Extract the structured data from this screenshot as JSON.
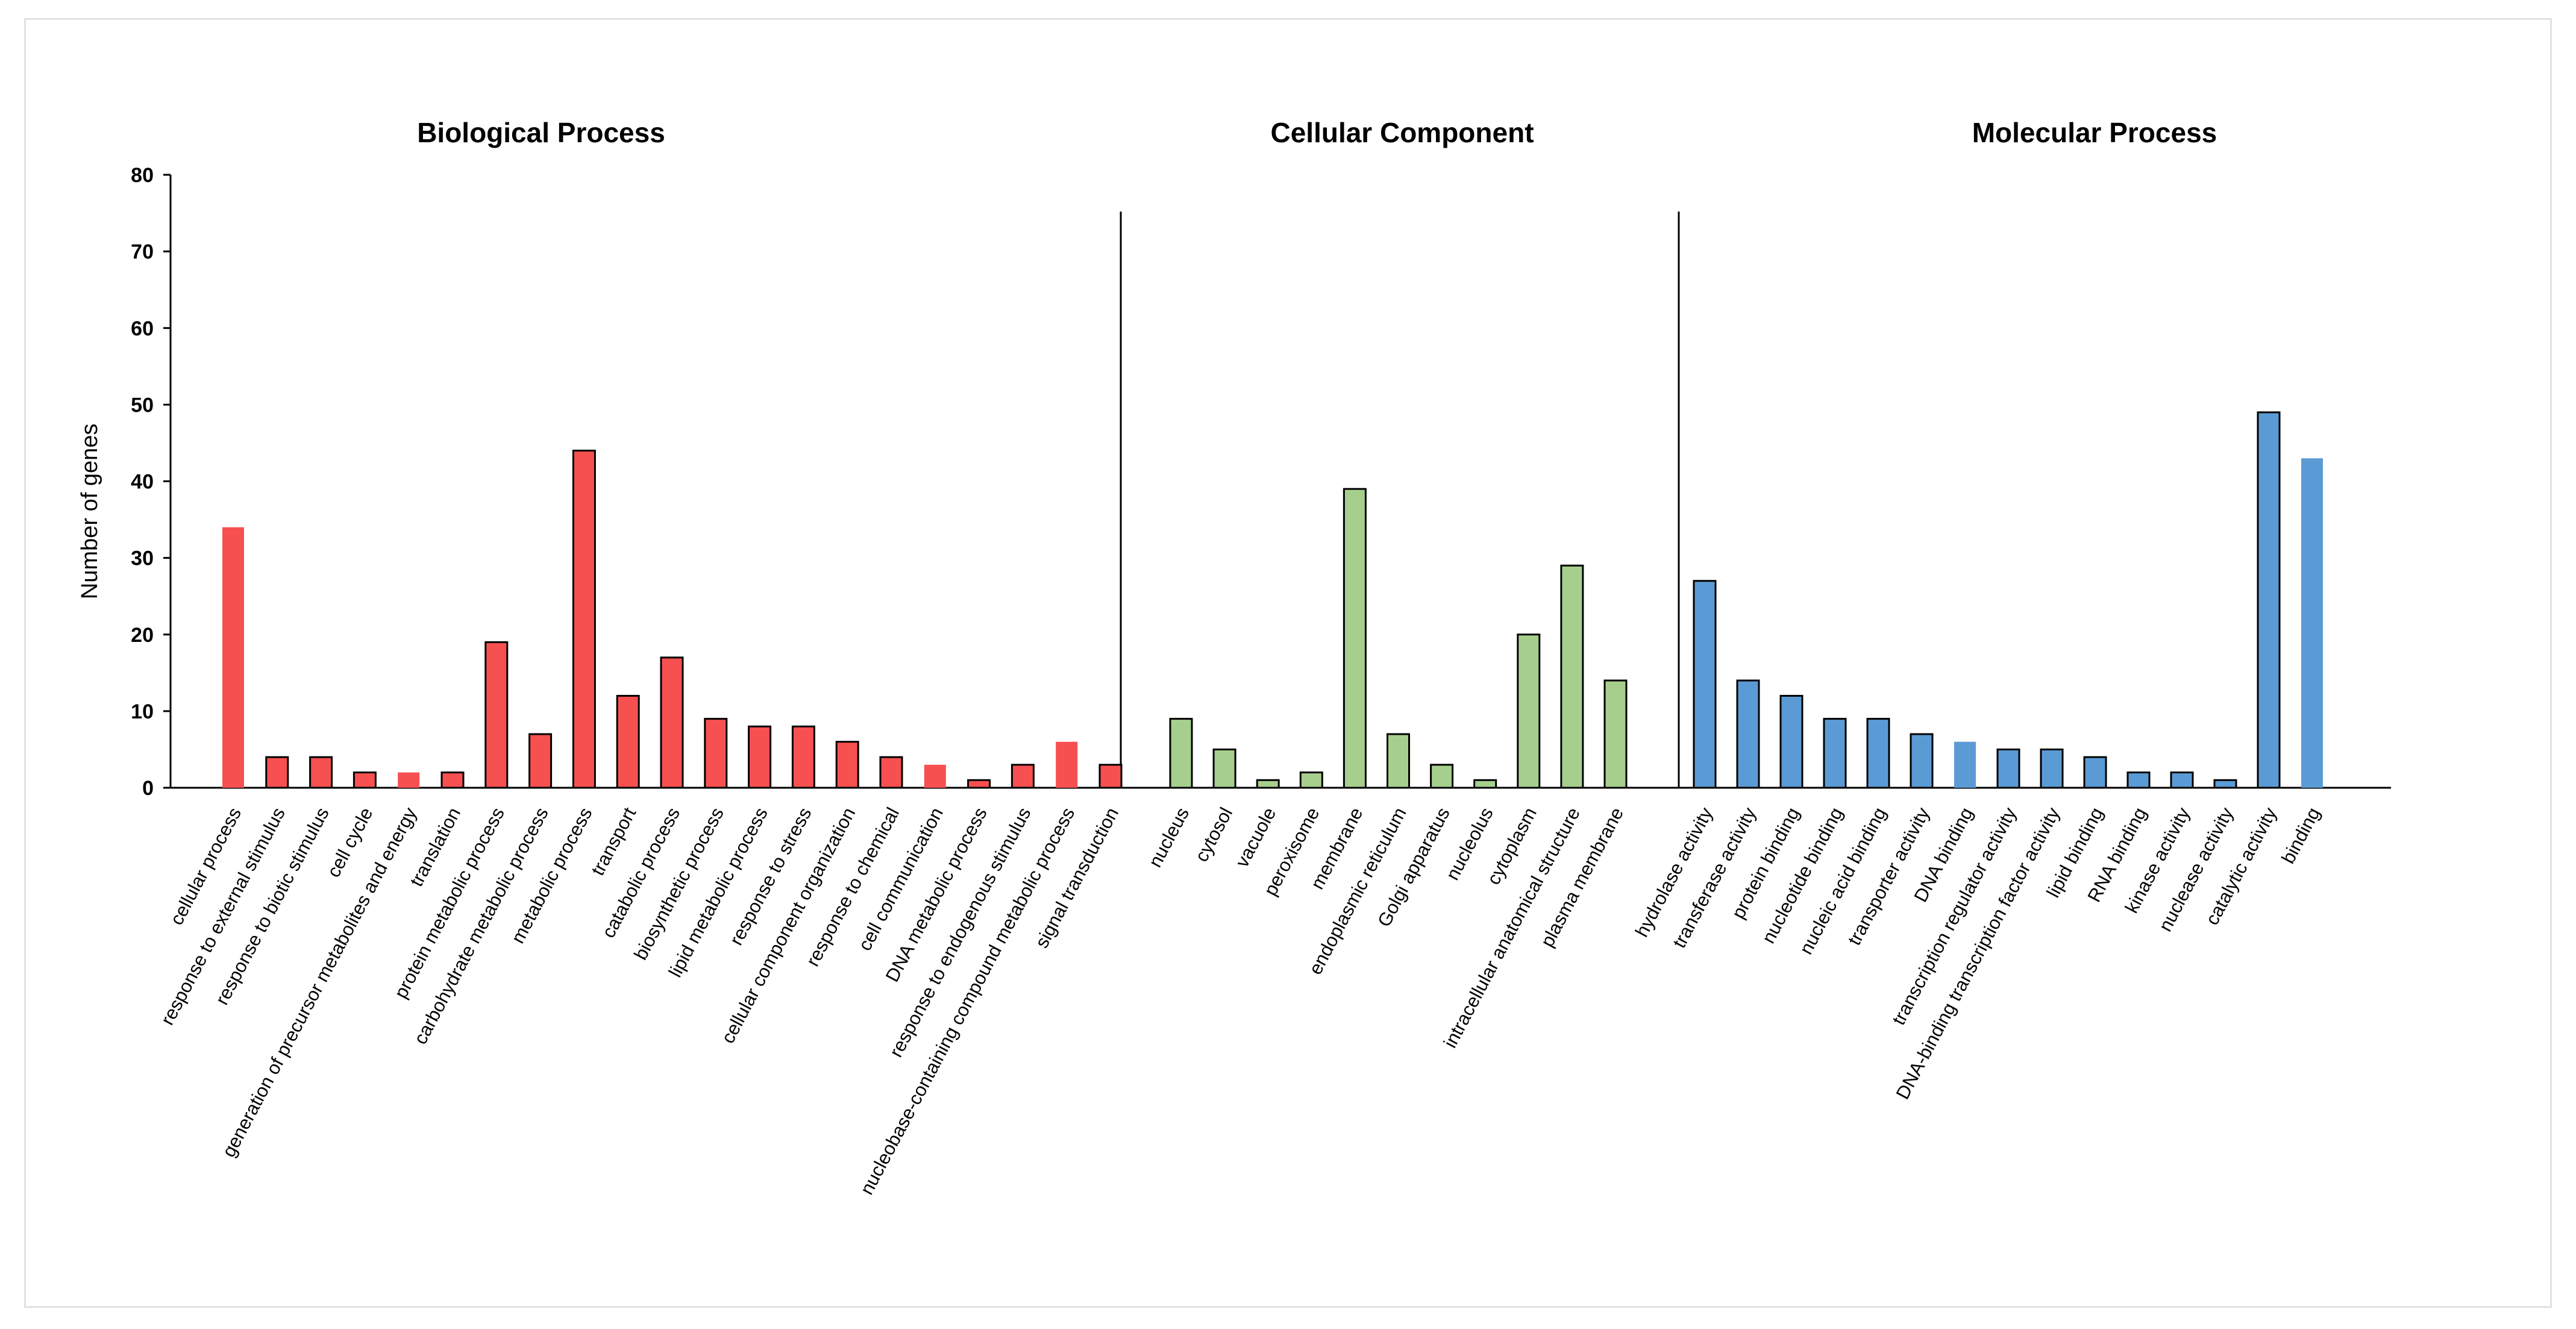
{
  "chart_data": {
    "type": "bar",
    "ylabel": "Number of genes",
    "ylim": [
      0,
      80
    ],
    "yticks": [
      0,
      10,
      20,
      30,
      40,
      50,
      60,
      70,
      80
    ],
    "grid": false,
    "legend": "none",
    "groups": [
      {
        "title": "Biological Process",
        "color": "#f75050",
        "categories": [
          "cellular process",
          "response to external stimulus",
          "response to biotic stimulus",
          "cell cycle",
          "generation of precursor metabolites and energy",
          "translation",
          "protein metabolic process",
          "carbohydrate metabolic process",
          "metabolic process",
          "transport",
          "catabolic process",
          "biosynthetic process",
          "lipid metabolic process",
          "response to stress",
          "cellular component organization",
          "response to chemical",
          "cell communication",
          "DNA metabolic process",
          "response to endogenous stimulus",
          "nucleobase-containing compound metabolic process",
          "signal transduction"
        ],
        "values": [
          34,
          4,
          4,
          2,
          2,
          2,
          19,
          7,
          44,
          12,
          17,
          9,
          8,
          8,
          6,
          4,
          3,
          1,
          3,
          6,
          3
        ],
        "outlined": [
          false,
          true,
          true,
          true,
          false,
          true,
          true,
          true,
          true,
          true,
          true,
          true,
          true,
          true,
          true,
          true,
          false,
          true,
          true,
          false,
          true
        ]
      },
      {
        "title": "Cellular Component",
        "color": "#a6cf8d",
        "categories": [
          "nucleus",
          "cytosol",
          "vacuole",
          "peroxisome",
          "membrane",
          "endoplasmic reticulum",
          "Golgi apparatus",
          "nucleolus",
          "cytoplasm",
          "intracellular anatomical structure",
          "plasma membrane"
        ],
        "values": [
          9,
          5,
          1,
          2,
          39,
          7,
          3,
          1,
          20,
          29,
          14
        ],
        "outlined": [
          true,
          true,
          true,
          true,
          true,
          true,
          true,
          true,
          true,
          true,
          true
        ]
      },
      {
        "title": "Molecular Process",
        "color": "#5b9bd5",
        "categories": [
          "hydrolase activity",
          "transferase activity",
          "protein binding",
          "nucleotide binding",
          "nucleic acid binding",
          "transporter activity",
          "DNA binding",
          "transcription regulator activity",
          "DNA-binding transcription factor activity",
          "lipid binding",
          "RNA binding",
          "kinase activity",
          "nuclease activity",
          "catalytic activity",
          "binding"
        ],
        "values": [
          27,
          14,
          12,
          9,
          9,
          7,
          6,
          5,
          5,
          4,
          2,
          2,
          1,
          49,
          43
        ],
        "outlined": [
          true,
          true,
          true,
          true,
          true,
          true,
          false,
          true,
          true,
          true,
          true,
          true,
          true,
          true,
          false
        ]
      }
    ]
  }
}
